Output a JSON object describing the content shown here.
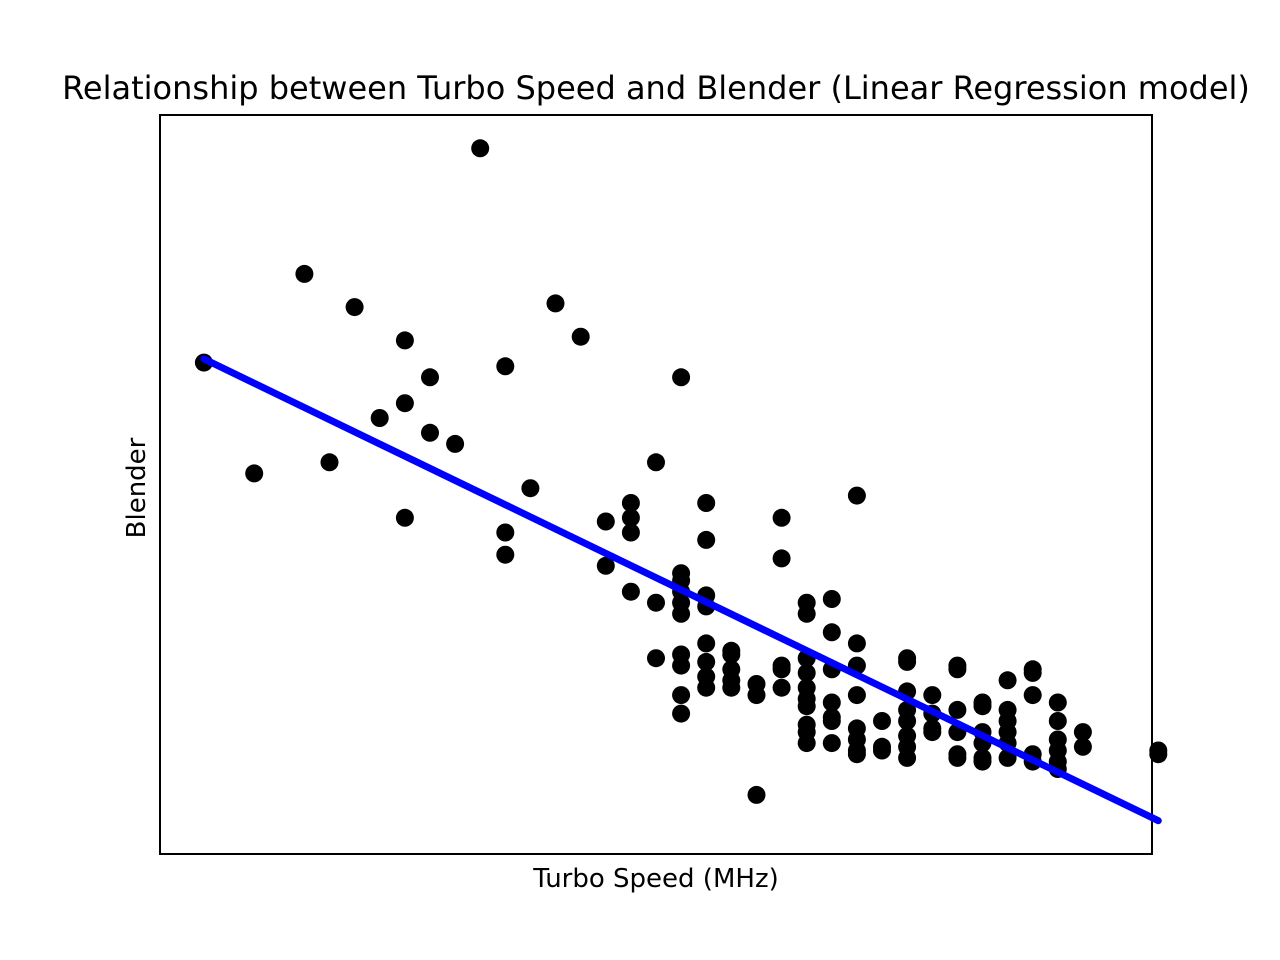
{
  "chart_data": {
    "type": "scatter",
    "title": "Relationship between Turbo Speed and Blender (Linear Regression model)",
    "xlabel": "Turbo Speed (MHz)",
    "ylabel": "Blender",
    "xlim": [
      0.25,
      39.75
    ],
    "ylim": [
      0,
      100
    ],
    "ticks_visible": false,
    "grid": false,
    "series": [
      {
        "type": "scatter",
        "color": "#000000",
        "points": [
          [
            2,
            66.5
          ],
          [
            4,
            51.5
          ],
          [
            6,
            78.5
          ],
          [
            7,
            53
          ],
          [
            8,
            74
          ],
          [
            9,
            59
          ],
          [
            10,
            69.5
          ],
          [
            10,
            61
          ],
          [
            10,
            45.5
          ],
          [
            11,
            64.5
          ],
          [
            11,
            57
          ],
          [
            12,
            55.5
          ],
          [
            13,
            95.5
          ],
          [
            14,
            66
          ],
          [
            14,
            43.5
          ],
          [
            14,
            40.5
          ],
          [
            15,
            49.5
          ],
          [
            16,
            74.5
          ],
          [
            17,
            70
          ],
          [
            18,
            45
          ],
          [
            18,
            39
          ],
          [
            19,
            47.5
          ],
          [
            19,
            45.5
          ],
          [
            19,
            43.5
          ],
          [
            19,
            35.5
          ],
          [
            20,
            53
          ],
          [
            20,
            34
          ],
          [
            20,
            26.5
          ],
          [
            21,
            64.5
          ],
          [
            21,
            38
          ],
          [
            21,
            37
          ],
          [
            21,
            35.5
          ],
          [
            21,
            34
          ],
          [
            21,
            32.5
          ],
          [
            21,
            27
          ],
          [
            21,
            25.5
          ],
          [
            21,
            21.5
          ],
          [
            21,
            19
          ],
          [
            22,
            47.5
          ],
          [
            22,
            42.5
          ],
          [
            22,
            35
          ],
          [
            22,
            33.5
          ],
          [
            22,
            28.5
          ],
          [
            22,
            26
          ],
          [
            22,
            24
          ],
          [
            22,
            22.5
          ],
          [
            23,
            27.5
          ],
          [
            23,
            27
          ],
          [
            23,
            25
          ],
          [
            23,
            23.5
          ],
          [
            23,
            22.5
          ],
          [
            24,
            23
          ],
          [
            24,
            21.5
          ],
          [
            24,
            8
          ],
          [
            25,
            45.5
          ],
          [
            25,
            40
          ],
          [
            25,
            25.5
          ],
          [
            25,
            25
          ],
          [
            25,
            22.5
          ],
          [
            26,
            34
          ],
          [
            26,
            32.5
          ],
          [
            26,
            26.5
          ],
          [
            26,
            24.5
          ],
          [
            26,
            22.5
          ],
          [
            26,
            21
          ],
          [
            26,
            20
          ],
          [
            26,
            17.5
          ],
          [
            26,
            16.5
          ],
          [
            26,
            15
          ],
          [
            27,
            34.5
          ],
          [
            27,
            30
          ],
          [
            27,
            25
          ],
          [
            27,
            20.5
          ],
          [
            27,
            18.5
          ],
          [
            27,
            18
          ],
          [
            27,
            15
          ],
          [
            28,
            48.5
          ],
          [
            28,
            28.5
          ],
          [
            28,
            25.5
          ],
          [
            28,
            21.5
          ],
          [
            28,
            17
          ],
          [
            28,
            15.5
          ],
          [
            28,
            13.5
          ],
          [
            28,
            14
          ],
          [
            29,
            18
          ],
          [
            29,
            14
          ],
          [
            29,
            14.5
          ],
          [
            30,
            26.5
          ],
          [
            30,
            26
          ],
          [
            30,
            22
          ],
          [
            30,
            19.5
          ],
          [
            30,
            18
          ],
          [
            30,
            16
          ],
          [
            30,
            14.5
          ],
          [
            30,
            13
          ],
          [
            31,
            21.5
          ],
          [
            31,
            19
          ],
          [
            31,
            17
          ],
          [
            31,
            16.5
          ],
          [
            32,
            25.5
          ],
          [
            32,
            25
          ],
          [
            32,
            19.5
          ],
          [
            32,
            16.5
          ],
          [
            32,
            13.5
          ],
          [
            32,
            13
          ],
          [
            33,
            20.5
          ],
          [
            33,
            20
          ],
          [
            33,
            16.5
          ],
          [
            33,
            15
          ],
          [
            33,
            13
          ],
          [
            33,
            12.5
          ],
          [
            34,
            23.5
          ],
          [
            34,
            19.5
          ],
          [
            34,
            18
          ],
          [
            34,
            16.5
          ],
          [
            34,
            15
          ],
          [
            34,
            13
          ],
          [
            35,
            25
          ],
          [
            35,
            24.5
          ],
          [
            35,
            21.5
          ],
          [
            35,
            13.5
          ],
          [
            35,
            12.5
          ],
          [
            36,
            20.5
          ],
          [
            36,
            18
          ],
          [
            36,
            15.5
          ],
          [
            36,
            14
          ],
          [
            36,
            12.5
          ],
          [
            36,
            11.5
          ],
          [
            37,
            16.5
          ],
          [
            37,
            14.5
          ],
          [
            40,
            14
          ],
          [
            40,
            13.5
          ]
        ]
      },
      {
        "type": "line",
        "color": "#0000ff",
        "points": [
          [
            2,
            67
          ],
          [
            40,
            4.5
          ]
        ]
      }
    ]
  }
}
